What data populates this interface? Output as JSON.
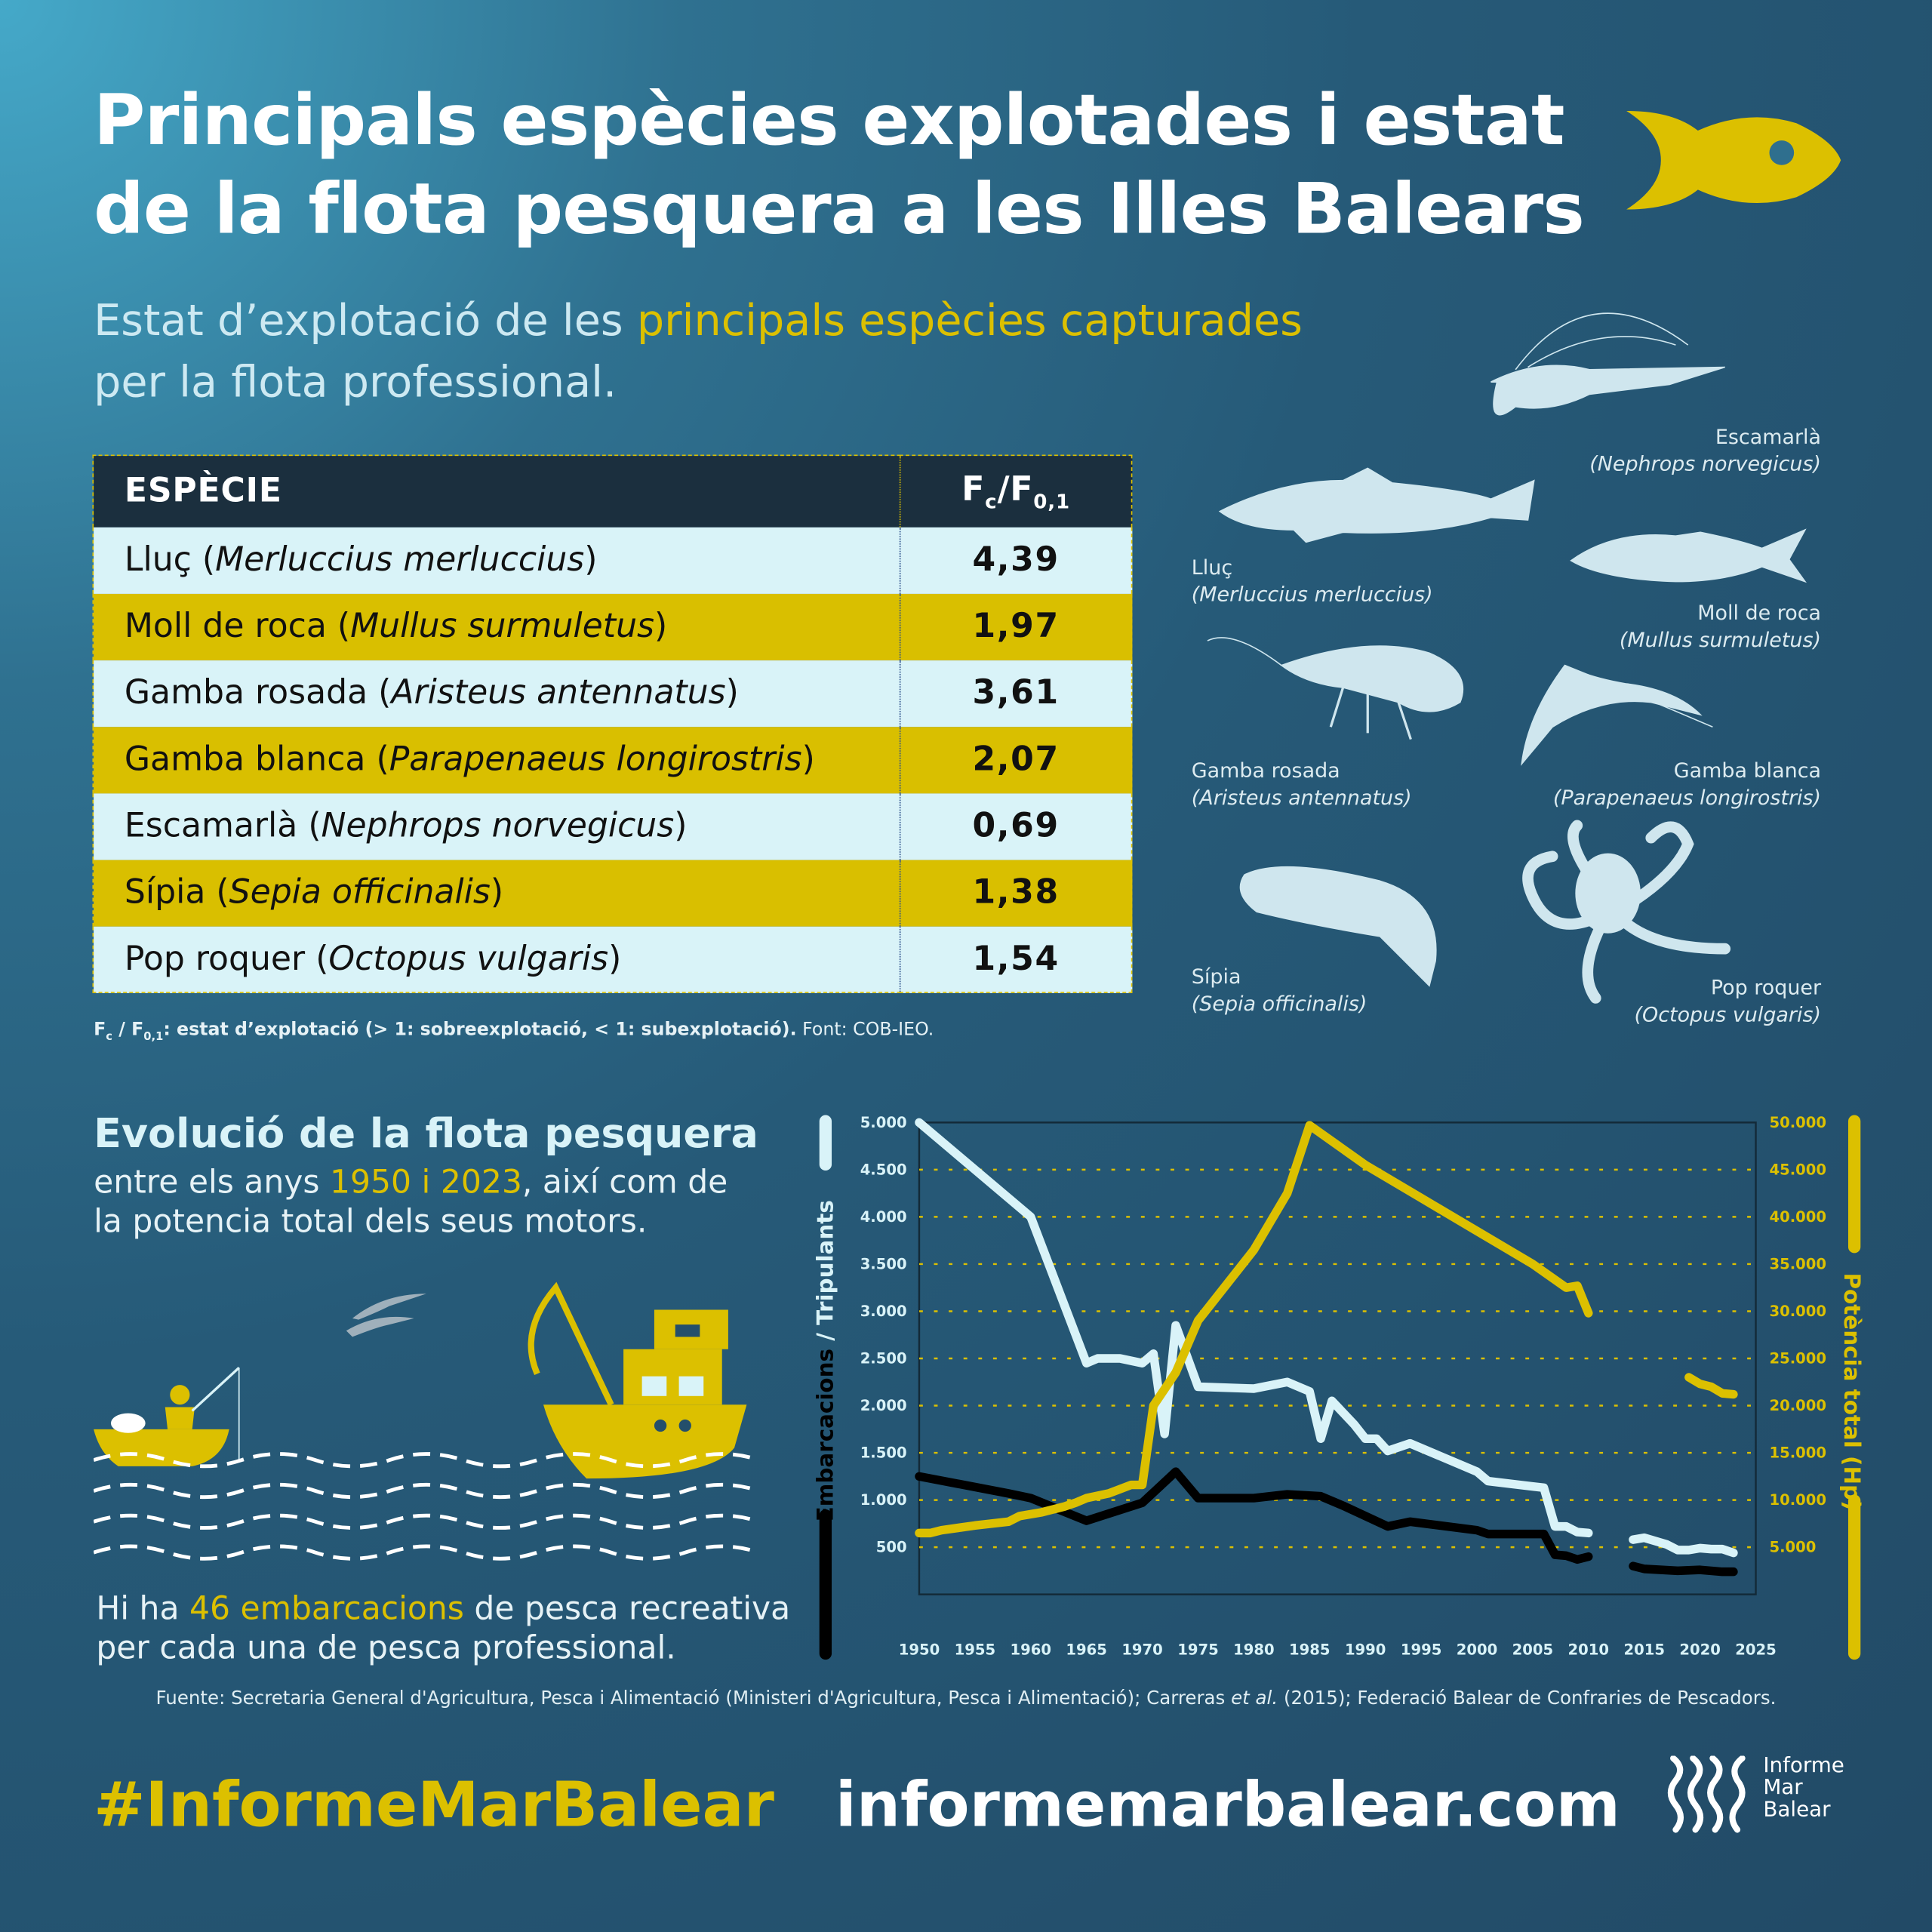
{
  "title": {
    "line1": "Principals espècies explotades i estat",
    "line2": "de la flota pesquera a les Illes Balears"
  },
  "subtitle": {
    "pre": "Estat d’explotació de les ",
    "highlight": "principals espècies capturades",
    "post": "per la flota professional."
  },
  "table": {
    "header": {
      "species": "ESPÈCIE",
      "value_main": "F",
      "value_sub1": "c",
      "value_sep": "/F",
      "value_sub2": "0,1"
    },
    "rows": [
      {
        "common": "Lluç",
        "latin": "Merluccius merluccius",
        "value": "4,39",
        "style": "light"
      },
      {
        "common": "Moll de roca",
        "latin": "Mullus surmuletus",
        "value": "1,97",
        "style": "gold"
      },
      {
        "common": "Gamba rosada",
        "latin": "Aristeus antennatus",
        "value": "3,61",
        "style": "light"
      },
      {
        "common": "Gamba blanca",
        "latin": "Parapenaeus longirostris",
        "value": "2,07",
        "style": "gold"
      },
      {
        "common": "Escamarlà",
        "latin": "Nephrops norvegicus",
        "value": "0,69",
        "style": "light"
      },
      {
        "common": "Sípia",
        "latin": "Sepia officinalis",
        "value": "1,38",
        "style": "gold"
      },
      {
        "common": "Pop roquer",
        "latin": "Octopus vulgaris",
        "value": "1,54",
        "style": "light"
      }
    ]
  },
  "footnote": {
    "f": "F",
    "c": "c",
    "sep": " / F",
    "s01": "0,1",
    "bold": ": estat d’explotació (> 1: sobreexplotació, < 1: subexplotació).",
    "plain": " Font: COB-IEO."
  },
  "illustrations": [
    {
      "common": "Escamarlà",
      "latin": "(Nephrops norvegicus)"
    },
    {
      "common": "Lluç",
      "latin": "(Merluccius merluccius)"
    },
    {
      "common": "Moll de roca",
      "latin": "(Mullus surmuletus)"
    },
    {
      "common": "Gamba rosada",
      "latin": "(Aristeus antennatus)"
    },
    {
      "common": "Gamba blanca",
      "latin": "(Parapenaeus longirostris)"
    },
    {
      "common": "Sípia",
      "latin": "(Sepia officinalis)"
    },
    {
      "common": "Pop roquer",
      "latin": "(Octopus vulgaris)"
    }
  ],
  "section2": {
    "heading": "Evolució de la flota pesquera",
    "line1_pre": "entre els anys ",
    "line1_hl": "1950 i 2023",
    "line1_post": ", així com de",
    "line2": "la potencia total dels seus motors."
  },
  "note": {
    "pre": "Hi ha ",
    "hl": "46 embarcacions",
    "post": " de pesca recreativa",
    "line2": "per cada una de pesca professional."
  },
  "source": {
    "pre": "Fuente: Secretaria General d'Agricultura, Pesca i Alimentació (Ministeri d'Agricultura, Pesca i Alimentació); Carreras ",
    "em": "et al.",
    "post": " (2015); Federació Balear de Confraries de Pescadors."
  },
  "footer": {
    "hashtag": "#InformeMarBalear",
    "url": "informemarbalear.com",
    "logo": [
      "Informe",
      "Mar",
      "Balear"
    ]
  },
  "colors": {
    "accent": "#dcc000",
    "light": "#d9f3f8",
    "dark": "#000000",
    "background": "#244f6b"
  },
  "icons": [
    "fish-icon",
    "seagulls-icon",
    "rowboat-fisher-icon",
    "fishing-boat-icon",
    "waves-icon",
    "wave-logo-icon"
  ],
  "chart_data": {
    "type": "line",
    "title": "",
    "xlabel": "",
    "ylabel_left": {
      "part1": "Embarcacions",
      "sep": " / ",
      "part2": "Tripulants"
    },
    "ylabel_right": "Potència total (Hp)",
    "xlim": [
      1950,
      2025
    ],
    "ylim_left": [
      0,
      5000
    ],
    "ylim_right": [
      0,
      50000
    ],
    "x_ticks": [
      "1950",
      "1955",
      "1960",
      "1965",
      "1970",
      "1975",
      "1980",
      "1985",
      "1990",
      "1995",
      "2000",
      "2005",
      "2010",
      "2015",
      "2020",
      "2025"
    ],
    "y_ticks_left": [
      "500",
      "1.000",
      "1.500",
      "2.000",
      "2.500",
      "3.000",
      "3.500",
      "4.000",
      "4.500",
      "5.000"
    ],
    "y_ticks_right": [
      "5.000",
      "10.000",
      "15.000",
      "20.000",
      "25.000",
      "30.000",
      "35.000",
      "40.000",
      "45.000",
      "50.000"
    ],
    "grid": "horizontal dotted",
    "series": [
      {
        "name": "Tripulants",
        "axis": "left",
        "color": "#d9f3f8",
        "segments": [
          [
            [
              1950,
              5000
            ],
            [
              1960,
              4000
            ],
            [
              1965,
              2450
            ],
            [
              1966,
              2500
            ],
            [
              1968,
              2500
            ],
            [
              1970,
              2450
            ],
            [
              1971,
              2550
            ],
            [
              1972,
              1700
            ],
            [
              1973,
              2850
            ],
            [
              1975,
              2200
            ],
            [
              1980,
              2180
            ],
            [
              1983,
              2250
            ],
            [
              1985,
              2150
            ],
            [
              1986,
              1650
            ],
            [
              1987,
              2050
            ],
            [
              1989,
              1800
            ],
            [
              1990,
              1650
            ],
            [
              1991,
              1650
            ],
            [
              1992,
              1520
            ],
            [
              1994,
              1600
            ],
            [
              2000,
              1300
            ],
            [
              2001,
              1200
            ],
            [
              2006,
              1130
            ],
            [
              2007,
              720
            ],
            [
              2008,
              720
            ],
            [
              2009,
              660
            ],
            [
              2010,
              650
            ]
          ],
          [
            [
              2014,
              580
            ],
            [
              2015,
              600
            ],
            [
              2017,
              530
            ],
            [
              2018,
              470
            ],
            [
              2019,
              470
            ],
            [
              2020,
              490
            ],
            [
              2021,
              480
            ],
            [
              2022,
              480
            ],
            [
              2023,
              440
            ]
          ]
        ]
      },
      {
        "name": "Embarcacions",
        "axis": "left",
        "color": "#000000",
        "segments": [
          [
            [
              1950,
              1250
            ],
            [
              1958,
              1070
            ],
            [
              1960,
              1020
            ],
            [
              1965,
              780
            ],
            [
              1970,
              970
            ],
            [
              1973,
              1300
            ],
            [
              1975,
              1020
            ],
            [
              1980,
              1020
            ],
            [
              1983,
              1060
            ],
            [
              1986,
              1040
            ],
            [
              1988,
              940
            ],
            [
              1992,
              720
            ],
            [
              1994,
              770
            ],
            [
              2000,
              680
            ],
            [
              2001,
              640
            ],
            [
              2006,
              640
            ],
            [
              2007,
              420
            ],
            [
              2008,
              410
            ],
            [
              2009,
              370
            ],
            [
              2010,
              400
            ]
          ],
          [
            [
              2014,
              300
            ],
            [
              2015,
              270
            ],
            [
              2018,
              250
            ],
            [
              2020,
              260
            ],
            [
              2022,
              240
            ],
            [
              2023,
              240
            ]
          ]
        ]
      },
      {
        "name": "Potència total (Hp)",
        "axis": "right",
        "color": "#dcc000",
        "segments": [
          [
            [
              1950,
              6500
            ],
            [
              1951,
              6500
            ],
            [
              1952,
              6800
            ],
            [
              1955,
              7300
            ],
            [
              1958,
              7700
            ],
            [
              1959,
              8300
            ],
            [
              1961,
              8700
            ],
            [
              1963,
              9300
            ],
            [
              1964,
              9700
            ],
            [
              1965,
              10200
            ],
            [
              1967,
              10700
            ],
            [
              1969,
              11600
            ],
            [
              1970,
              11600
            ],
            [
              1971,
              20000
            ],
            [
              1973,
              23500
            ],
            [
              1975,
              29000
            ],
            [
              1980,
              36500
            ],
            [
              1983,
              42500
            ],
            [
              1985,
              49700
            ],
            [
              1990,
              45500
            ],
            [
              1995,
              42000
            ],
            [
              2000,
              38500
            ],
            [
              2005,
              35000
            ],
            [
              2008,
              32500
            ],
            [
              2009,
              32700
            ],
            [
              2010,
              29800
            ]
          ],
          [
            [
              2019,
              23000
            ],
            [
              2020,
              22300
            ],
            [
              2021,
              22000
            ],
            [
              2022,
              21300
            ],
            [
              2023,
              21200
            ]
          ]
        ]
      }
    ]
  }
}
